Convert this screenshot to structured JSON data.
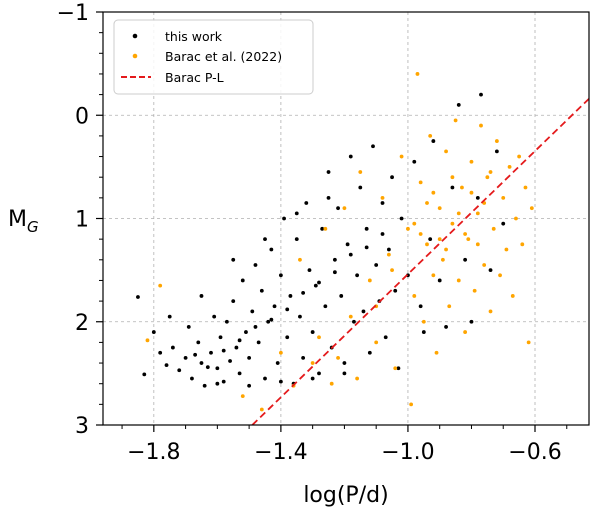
{
  "chart_data": {
    "type": "scatter",
    "xlabel": "log(P/d)",
    "ylabel_main": "M",
    "ylabel_sub": "G",
    "xlim": [
      -1.96,
      -0.43
    ],
    "ylim": [
      3,
      -1
    ],
    "y_inverted": true,
    "x_ticks": [
      -1.8,
      -1.4,
      -1.0,
      -0.6
    ],
    "x_tick_labels": [
      "−1.8",
      "−1.4",
      "−1.0",
      "−0.6"
    ],
    "x_minor_ticks": [
      -1.9,
      -1.7,
      -1.6,
      -1.5,
      -1.3,
      -1.2,
      -1.1,
      -0.9,
      -0.8,
      -0.7,
      -0.5
    ],
    "y_ticks": [
      -1,
      0,
      1,
      2,
      3
    ],
    "y_tick_labels": [
      "−1",
      "0",
      "1",
      "2",
      "3"
    ],
    "y_minor_ticks": [
      -0.8,
      -0.6,
      -0.4,
      -0.2,
      0.2,
      0.4,
      0.6,
      0.8,
      1.2,
      1.4,
      1.6,
      1.8,
      2.2,
      2.4,
      2.6,
      2.8
    ],
    "grid": true,
    "legend_position": "top-left",
    "series": [
      {
        "name": "this work",
        "kind": "scatter",
        "color": "#000000",
        "points": [
          [
            -1.85,
            1.76
          ],
          [
            -1.83,
            2.51
          ],
          [
            -1.8,
            2.1
          ],
          [
            -1.78,
            2.3
          ],
          [
            -1.76,
            2.42
          ],
          [
            -1.74,
            2.25
          ],
          [
            -1.72,
            2.47
          ],
          [
            -1.7,
            2.35
          ],
          [
            -1.69,
            2.05
          ],
          [
            -1.68,
            2.55
          ],
          [
            -1.66,
            2.2
          ],
          [
            -1.65,
            2.4
          ],
          [
            -1.64,
            2.62
          ],
          [
            -1.62,
            2.3
          ],
          [
            -1.61,
            1.95
          ],
          [
            -1.6,
            2.45
          ],
          [
            -1.59,
            2.15
          ],
          [
            -1.58,
            2.58
          ],
          [
            -1.57,
            2.0
          ],
          [
            -1.56,
            2.38
          ],
          [
            -1.55,
            1.8
          ],
          [
            -1.54,
            2.25
          ],
          [
            -1.53,
            2.5
          ],
          [
            -1.52,
            1.6
          ],
          [
            -1.51,
            2.1
          ],
          [
            -1.5,
            2.35
          ],
          [
            -1.49,
            1.9
          ],
          [
            -1.48,
            1.45
          ],
          [
            -1.47,
            2.2
          ],
          [
            -1.46,
            1.7
          ],
          [
            -1.45,
            2.55
          ],
          [
            -1.44,
            2.0
          ],
          [
            -1.43,
            1.3
          ],
          [
            -1.42,
            1.85
          ],
          [
            -1.41,
            2.4
          ],
          [
            -1.4,
            1.55
          ],
          [
            -1.39,
            1.0
          ],
          [
            -1.38,
            2.15
          ],
          [
            -1.37,
            1.75
          ],
          [
            -1.36,
            2.6
          ],
          [
            -1.35,
            1.2
          ],
          [
            -1.34,
            1.95
          ],
          [
            -1.33,
            2.35
          ],
          [
            -1.32,
            0.85
          ],
          [
            -1.31,
            1.5
          ],
          [
            -1.3,
            2.1
          ],
          [
            -1.29,
            1.65
          ],
          [
            -1.28,
            2.5
          ],
          [
            -1.27,
            1.1
          ],
          [
            -1.26,
            1.85
          ],
          [
            -1.25,
            0.55
          ],
          [
            -1.24,
            2.25
          ],
          [
            -1.23,
            1.4
          ],
          [
            -1.22,
            0.9
          ],
          [
            -1.21,
            1.75
          ],
          [
            -1.2,
            2.4
          ],
          [
            -1.19,
            1.25
          ],
          [
            -1.18,
            0.4
          ],
          [
            -1.17,
            2.0
          ],
          [
            -1.16,
            1.55
          ],
          [
            -1.15,
            0.7
          ],
          [
            -1.14,
            1.9
          ],
          [
            -1.13,
            1.1
          ],
          [
            -1.12,
            2.3
          ],
          [
            -1.11,
            0.3
          ],
          [
            -1.1,
            1.45
          ],
          [
            -1.09,
            1.8
          ],
          [
            -1.08,
            0.85
          ],
          [
            -1.07,
            2.15
          ],
          [
            -1.06,
            1.3
          ],
          [
            -1.05,
            0.6
          ],
          [
            -1.04,
            1.7
          ],
          [
            -1.03,
            2.45
          ],
          [
            -1.02,
            1.0
          ],
          [
            -1.0,
            1.55
          ],
          [
            -0.98,
            0.45
          ],
          [
            -0.96,
            1.85
          ],
          [
            -0.95,
            2.1
          ],
          [
            -0.93,
            1.2
          ],
          [
            -0.92,
            0.25
          ],
          [
            -0.9,
            1.6
          ],
          [
            -0.88,
            2.05
          ],
          [
            -0.86,
            0.7
          ],
          [
            -0.84,
            -0.1
          ],
          [
            -0.82,
            1.4
          ],
          [
            -0.8,
            2.0
          ],
          [
            -0.78,
            0.8
          ],
          [
            -0.77,
            -0.2
          ],
          [
            -0.74,
            1.5
          ],
          [
            -0.72,
            0.35
          ],
          [
            -0.7,
            1.05
          ],
          [
            -1.67,
            2.32
          ],
          [
            -1.63,
            2.44
          ],
          [
            -1.58,
            2.28
          ],
          [
            -1.53,
            2.18
          ],
          [
            -1.48,
            2.05
          ],
          [
            -1.43,
            1.98
          ],
          [
            -1.38,
            1.88
          ],
          [
            -1.33,
            1.72
          ],
          [
            -1.28,
            1.62
          ],
          [
            -1.23,
            1.52
          ],
          [
            -1.18,
            1.35
          ],
          [
            -1.13,
            1.28
          ],
          [
            -1.08,
            1.15
          ],
          [
            -1.6,
            2.6
          ],
          [
            -1.5,
            2.62
          ],
          [
            -1.4,
            2.58
          ],
          [
            -1.3,
            2.55
          ],
          [
            -1.2,
            2.5
          ],
          [
            -1.45,
            1.2
          ],
          [
            -1.35,
            0.95
          ],
          [
            -1.25,
            0.8
          ],
          [
            -1.55,
            1.4
          ],
          [
            -1.65,
            1.75
          ],
          [
            -1.75,
            1.95
          ]
        ]
      },
      {
        "name": "Barac et al. (2022)",
        "kind": "scatter",
        "color": "#FFA500",
        "points": [
          [
            -1.82,
            2.18
          ],
          [
            -1.78,
            1.65
          ],
          [
            -1.52,
            2.72
          ],
          [
            -1.46,
            2.85
          ],
          [
            -1.4,
            2.3
          ],
          [
            -1.34,
            1.4
          ],
          [
            -1.3,
            2.4
          ],
          [
            -1.26,
            1.1
          ],
          [
            -1.24,
            2.6
          ],
          [
            -1.2,
            0.9
          ],
          [
            -1.18,
            1.95
          ],
          [
            -1.15,
            0.55
          ],
          [
            -1.12,
            1.6
          ],
          [
            -1.1,
            2.2
          ],
          [
            -1.08,
            0.8
          ],
          [
            -1.06,
            1.35
          ],
          [
            -1.04,
            2.45
          ],
          [
            -1.02,
            0.4
          ],
          [
            -1.0,
            1.1
          ],
          [
            -0.98,
            1.75
          ],
          [
            -0.97,
            -0.4
          ],
          [
            -0.96,
            0.65
          ],
          [
            -0.95,
            2.0
          ],
          [
            -0.94,
            1.25
          ],
          [
            -0.93,
            0.2
          ],
          [
            -0.92,
            1.55
          ],
          [
            -0.91,
            2.3
          ],
          [
            -0.9,
            0.9
          ],
          [
            -0.89,
            1.4
          ],
          [
            -0.88,
            0.35
          ],
          [
            -0.87,
            1.85
          ],
          [
            -0.86,
            1.05
          ],
          [
            -0.85,
            0.05
          ],
          [
            -0.84,
            1.6
          ],
          [
            -0.83,
            0.7
          ],
          [
            -0.82,
            2.1
          ],
          [
            -0.81,
            1.2
          ],
          [
            -0.8,
            0.45
          ],
          [
            -0.79,
            1.7
          ],
          [
            -0.78,
            0.95
          ],
          [
            -0.77,
            0.1
          ],
          [
            -0.76,
            1.45
          ],
          [
            -0.75,
            0.6
          ],
          [
            -0.74,
            1.9
          ],
          [
            -0.73,
            1.1
          ],
          [
            -0.72,
            0.25
          ],
          [
            -0.71,
            1.55
          ],
          [
            -0.7,
            0.8
          ],
          [
            -0.69,
            1.3
          ],
          [
            -0.68,
            0.5
          ],
          [
            -0.67,
            1.75
          ],
          [
            -0.66,
            1.0
          ],
          [
            -0.65,
            0.4
          ],
          [
            -0.64,
            1.25
          ],
          [
            -0.63,
            0.7
          ],
          [
            -0.62,
            2.2
          ],
          [
            -0.61,
            0.9
          ],
          [
            -0.98,
            1.05
          ],
          [
            -0.96,
            1.15
          ],
          [
            -0.94,
            0.85
          ],
          [
            -0.92,
            0.75
          ],
          [
            -0.9,
            1.2
          ],
          [
            -0.88,
            1.3
          ],
          [
            -0.86,
            0.6
          ],
          [
            -0.84,
            0.95
          ],
          [
            -0.82,
            1.15
          ],
          [
            -0.8,
            0.75
          ],
          [
            -0.78,
            1.25
          ],
          [
            -0.76,
            0.85
          ],
          [
            -0.74,
            0.55
          ],
          [
            -1.16,
            2.55
          ],
          [
            -1.22,
            2.35
          ],
          [
            -1.28,
            2.15
          ],
          [
            -1.36,
            2.62
          ],
          [
            -0.99,
            2.8
          ],
          [
            -1.1,
            1.85
          ],
          [
            -1.05,
            1.5
          ]
        ]
      },
      {
        "name": "Barac P-L",
        "kind": "line",
        "color": "#E41A1C",
        "dashed": true,
        "points": [
          [
            -1.49,
            3.0
          ],
          [
            -0.43,
            -0.16
          ]
        ]
      }
    ]
  }
}
